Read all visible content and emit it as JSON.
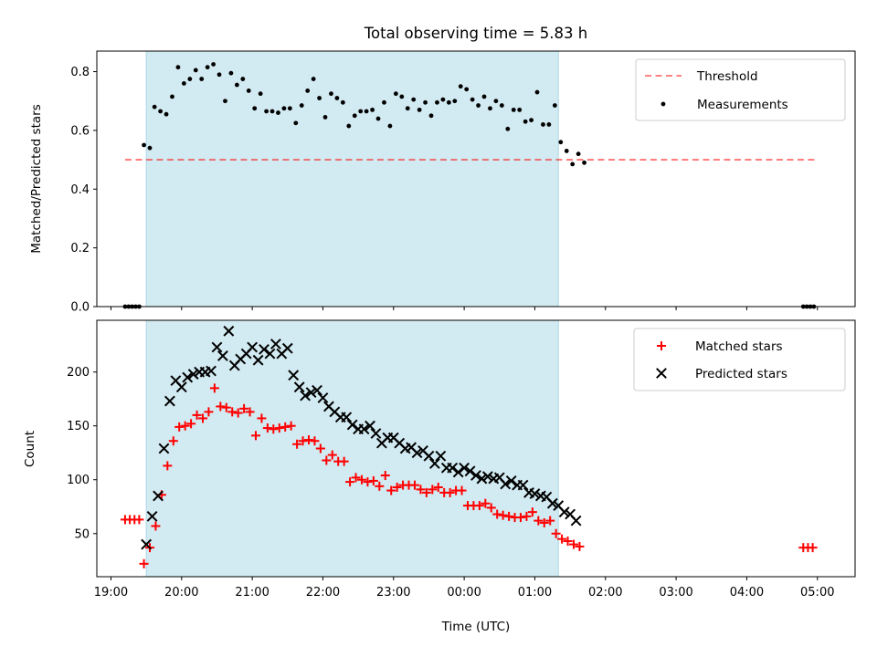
{
  "colors": {
    "shade": "#add8e6",
    "threshold": "#ff0000",
    "measurement": "#000000",
    "matched": "#ff0000",
    "predicted": "#000000"
  },
  "chart_data": [
    {
      "type": "scatter",
      "title": "Total observing time = 5.83 h",
      "ylabel": "Matched/Predicted stars",
      "xlabel": "",
      "xlim": [
        "18:48",
        "05:32"
      ],
      "ylim": [
        0,
        0.87
      ],
      "yticks": [
        "0.0",
        "0.2",
        "0.4",
        "0.6",
        "0.8"
      ],
      "ytick_values": [
        0,
        0.2,
        0.4,
        0.6,
        0.8
      ],
      "shaded_interval": [
        "19:30",
        "01:20"
      ],
      "grid": false,
      "legend_position": "top-right",
      "threshold": {
        "name": "Threshold",
        "value": 0.5,
        "x": [
          "19:12",
          "04:58"
        ],
        "style": "dashed"
      },
      "series": [
        {
          "name": "Measurements",
          "x": [
            "19:12",
            "19:15",
            "19:18",
            "19:21",
            "19:24",
            "19:28",
            "19:33",
            "19:37",
            "19:42",
            "19:47",
            "19:52",
            "19:57",
            "20:02",
            "20:07",
            "20:12",
            "20:17",
            "20:22",
            "20:27",
            "20:32",
            "20:37",
            "20:42",
            "20:47",
            "20:52",
            "20:57",
            "21:02",
            "21:07",
            "21:12",
            "21:17",
            "21:22",
            "21:27",
            "21:32",
            "21:37",
            "21:42",
            "21:47",
            "21:52",
            "21:57",
            "22:02",
            "22:07",
            "22:12",
            "22:17",
            "22:22",
            "22:27",
            "22:32",
            "22:37",
            "22:42",
            "22:47",
            "22:52",
            "22:57",
            "23:02",
            "23:07",
            "23:12",
            "23:17",
            "23:22",
            "23:27",
            "23:32",
            "23:37",
            "23:42",
            "23:47",
            "23:52",
            "23:57",
            "00:02",
            "00:07",
            "00:12",
            "00:17",
            "00:22",
            "00:27",
            "00:32",
            "00:37",
            "00:42",
            "00:47",
            "00:52",
            "00:57",
            "01:02",
            "01:07",
            "01:12",
            "01:17",
            "01:22",
            "01:27",
            "01:32",
            "01:37",
            "01:42",
            "04:48",
            "04:51",
            "04:54",
            "04:57"
          ],
          "values": [
            0,
            0,
            0,
            0,
            0,
            0.55,
            0.54,
            0.68,
            0.665,
            0.655,
            0.715,
            0.815,
            0.76,
            0.775,
            0.805,
            0.775,
            0.815,
            0.825,
            0.79,
            0.7,
            0.795,
            0.755,
            0.775,
            0.735,
            0.675,
            0.725,
            0.665,
            0.665,
            0.66,
            0.675,
            0.675,
            0.625,
            0.685,
            0.735,
            0.775,
            0.71,
            0.645,
            0.725,
            0.71,
            0.695,
            0.615,
            0.65,
            0.665,
            0.665,
            0.67,
            0.64,
            0.695,
            0.615,
            0.725,
            0.715,
            0.675,
            0.705,
            0.67,
            0.695,
            0.65,
            0.695,
            0.705,
            0.695,
            0.7,
            0.75,
            0.74,
            0.705,
            0.685,
            0.715,
            0.675,
            0.7,
            0.685,
            0.605,
            0.67,
            0.67,
            0.63,
            0.635,
            0.73,
            0.62,
            0.62,
            0.685,
            0.56,
            0.53,
            0.485,
            0.52,
            0.49,
            0,
            0,
            0,
            0
          ]
        }
      ]
    },
    {
      "type": "scatter",
      "title": "",
      "ylabel": "Count",
      "xlabel": "Time (UTC)",
      "xlim": [
        "18:48",
        "05:32"
      ],
      "ylim": [
        10,
        248
      ],
      "yticks": [
        "50",
        "100",
        "150",
        "200"
      ],
      "ytick_values": [
        50,
        100,
        150,
        200
      ],
      "xticks": [
        "19:00",
        "20:00",
        "21:00",
        "22:00",
        "23:00",
        "00:00",
        "01:00",
        "02:00",
        "03:00",
        "04:00",
        "05:00"
      ],
      "shaded_interval": [
        "19:30",
        "01:20"
      ],
      "grid": false,
      "legend_position": "top-right",
      "series": [
        {
          "name": "Matched stars",
          "marker": "+",
          "x": [
            "19:12",
            "19:16",
            "19:20",
            "19:24",
            "19:28",
            "19:33",
            "19:38",
            "19:43",
            "19:48",
            "19:53",
            "19:58",
            "20:03",
            "20:08",
            "20:13",
            "20:18",
            "20:23",
            "20:28",
            "20:33",
            "20:38",
            "20:43",
            "20:48",
            "20:53",
            "20:58",
            "21:03",
            "21:08",
            "21:13",
            "21:18",
            "21:23",
            "21:28",
            "21:33",
            "21:38",
            "21:43",
            "21:48",
            "21:53",
            "21:58",
            "22:03",
            "22:08",
            "22:13",
            "22:18",
            "22:23",
            "22:28",
            "22:33",
            "22:38",
            "22:43",
            "22:48",
            "22:53",
            "22:58",
            "23:03",
            "23:08",
            "23:13",
            "23:18",
            "23:23",
            "23:28",
            "23:33",
            "23:38",
            "23:43",
            "23:48",
            "23:53",
            "23:58",
            "00:03",
            "00:08",
            "00:13",
            "00:18",
            "00:23",
            "00:28",
            "00:33",
            "00:38",
            "00:43",
            "00:48",
            "00:53",
            "00:58",
            "01:03",
            "01:08",
            "01:13",
            "01:18",
            "01:23",
            "01:28",
            "01:33",
            "01:38",
            "04:48",
            "04:52",
            "04:56"
          ],
          "values": [
            63,
            63,
            63,
            63,
            22,
            37,
            57,
            86,
            113,
            136,
            149,
            150,
            152,
            160,
            157,
            163,
            185,
            168,
            167,
            163,
            162,
            166,
            163,
            141,
            157,
            148,
            147,
            148,
            149,
            150,
            133,
            136,
            137,
            136,
            129,
            118,
            123,
            117,
            117,
            98,
            102,
            100,
            98,
            99,
            94,
            104,
            90,
            93,
            95,
            95,
            95,
            91,
            88,
            91,
            93,
            88,
            88,
            90,
            90,
            76,
            76,
            76,
            78,
            74,
            68,
            67,
            66,
            65,
            65,
            66,
            70,
            62,
            60,
            62,
            50,
            45,
            43,
            40,
            38,
            37,
            37,
            37
          ]
        },
        {
          "name": "Predicted stars",
          "marker": "x",
          "x": [
            "19:30",
            "19:35",
            "19:40",
            "19:45",
            "19:50",
            "19:55",
            "20:00",
            "20:05",
            "20:10",
            "20:15",
            "20:20",
            "20:25",
            "20:30",
            "20:35",
            "20:40",
            "20:45",
            "20:50",
            "20:55",
            "21:00",
            "21:05",
            "21:10",
            "21:15",
            "21:20",
            "21:25",
            "21:30",
            "21:35",
            "21:40",
            "21:45",
            "21:50",
            "21:55",
            "22:00",
            "22:05",
            "22:10",
            "22:15",
            "22:20",
            "22:25",
            "22:30",
            "22:35",
            "22:40",
            "22:45",
            "22:50",
            "22:55",
            "23:00",
            "23:05",
            "23:10",
            "23:15",
            "23:20",
            "23:25",
            "23:30",
            "23:35",
            "23:40",
            "23:45",
            "23:50",
            "23:55",
            "00:00",
            "00:05",
            "00:10",
            "00:15",
            "00:20",
            "00:25",
            "00:30",
            "00:35",
            "00:40",
            "00:45",
            "00:50",
            "00:55",
            "01:00",
            "01:05",
            "01:10",
            "01:15",
            "01:20",
            "01:25",
            "01:30",
            "01:35"
          ],
          "values": [
            40,
            66,
            85,
            129,
            173,
            192,
            186,
            195,
            198,
            200,
            200,
            201,
            223,
            215,
            238,
            206,
            212,
            217,
            223,
            211,
            221,
            217,
            226,
            217,
            222,
            197,
            186,
            178,
            181,
            183,
            176,
            168,
            163,
            158,
            158,
            151,
            147,
            147,
            150,
            143,
            134,
            139,
            139,
            134,
            129,
            130,
            125,
            127,
            122,
            115,
            122,
            111,
            111,
            107,
            111,
            108,
            104,
            101,
            103,
            101,
            102,
            96,
            99,
            95,
            95,
            88,
            87,
            85,
            84,
            78,
            76,
            70,
            68,
            62
          ]
        }
      ]
    }
  ]
}
